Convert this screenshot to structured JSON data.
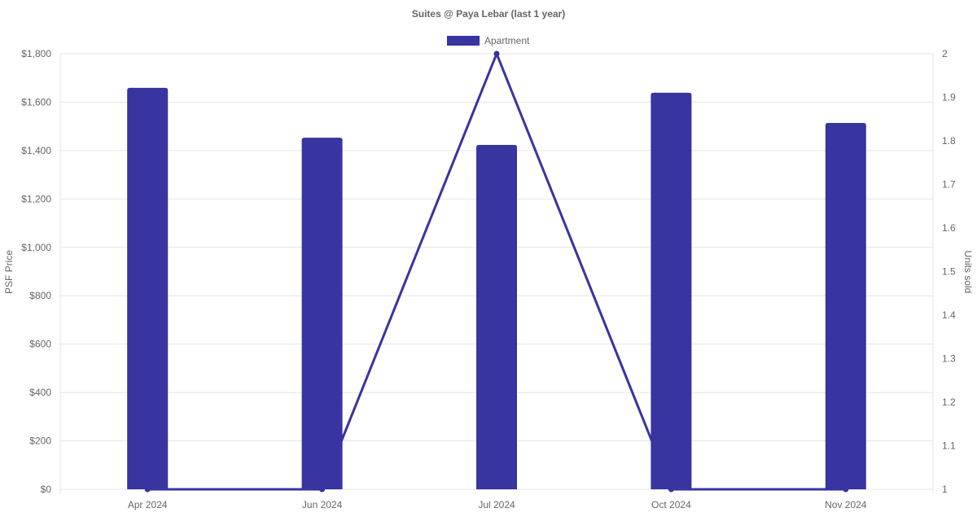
{
  "chart_data": {
    "type": "bar",
    "title": "Suites @ Paya Lebar (last 1 year)",
    "categories": [
      "Apr 2024",
      "Jun 2024",
      "Jul 2024",
      "Oct 2024",
      "Nov 2024"
    ],
    "series": [
      {
        "name": "Apartment",
        "type": "bar",
        "axis": "left",
        "values": [
          1659,
          1453,
          1423,
          1639,
          1514
        ]
      },
      {
        "type": "line",
        "axis": "right",
        "values": [
          1,
          1,
          2,
          1,
          1
        ]
      }
    ],
    "ylabel": "PSF Price",
    "y2label": "Units sold",
    "ylim": [
      0,
      1800
    ],
    "y2lim": [
      1,
      2
    ],
    "yticks": [
      "$0",
      "$200",
      "$400",
      "$600",
      "$800",
      "$1,000",
      "$1,200",
      "$1,400",
      "$1,600",
      "$1,800"
    ],
    "y2ticks": [
      "1",
      "1.1",
      "1.2",
      "1.3",
      "1.4",
      "1.5",
      "1.6",
      "1.7",
      "1.8",
      "1.9",
      "2"
    ],
    "grid": true,
    "legend": "top-center",
    "colors": {
      "series": "#3834a0",
      "grid": "#e5e5e5",
      "text": "#666666"
    }
  }
}
